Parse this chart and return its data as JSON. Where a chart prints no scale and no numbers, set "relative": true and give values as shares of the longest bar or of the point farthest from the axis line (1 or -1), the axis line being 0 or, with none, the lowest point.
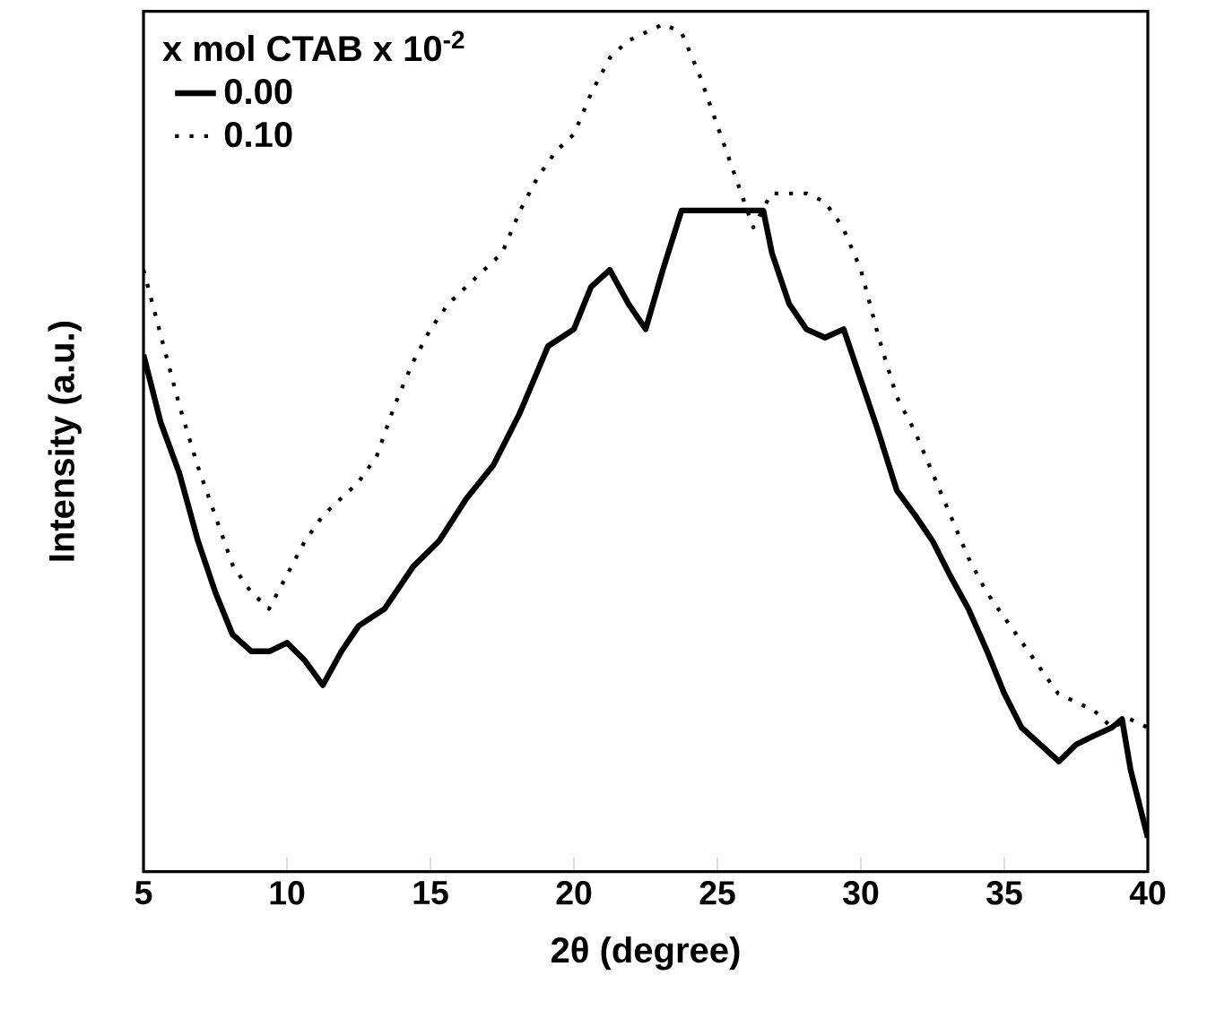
{
  "chart_data": {
    "type": "line",
    "relative": true,
    "xlabel": "2θ (degree)",
    "ylabel": "Intensity (a.u.)",
    "legend_title": "x mol CTAB x 10$^{-2}$",
    "legend": "top left",
    "xlim": [
      5,
      40
    ],
    "xticks": [
      5,
      10,
      15,
      20,
      25,
      30,
      35,
      40
    ],
    "series": [
      {
        "name": "0.00",
        "color": "#000000",
        "line_style": "solid",
        "x": [
          5,
          5.6,
          6.25,
          6.9,
          7.5,
          8.1,
          8.75,
          9.4,
          10,
          10.6,
          11.25,
          11.9,
          12.5,
          13.4,
          14.4,
          15.3,
          16.25,
          17.2,
          18.1,
          19.1,
          20,
          20.6,
          21.25,
          21.9,
          22.5,
          23.1,
          23.75,
          24.4,
          25.6,
          26.6,
          26.9,
          27.5,
          28.1,
          28.75,
          29.4,
          30,
          30.6,
          31.25,
          31.9,
          32.5,
          33.1,
          33.75,
          34.4,
          35,
          35.6,
          36.25,
          36.9,
          37.5,
          38.1,
          38.75,
          39.1,
          39.4,
          40
        ],
        "values": [
          0.61,
          0.53,
          0.47,
          0.39,
          0.33,
          0.28,
          0.26,
          0.26,
          0.27,
          0.25,
          0.22,
          0.26,
          0.29,
          0.31,
          0.36,
          0.39,
          0.44,
          0.48,
          0.54,
          0.62,
          0.64,
          0.69,
          0.71,
          0.67,
          0.64,
          0.71,
          0.78,
          0.78,
          0.78,
          0.78,
          0.73,
          0.67,
          0.64,
          0.63,
          0.64,
          0.58,
          0.52,
          0.45,
          0.42,
          0.39,
          0.35,
          0.31,
          0.26,
          0.21,
          0.17,
          0.15,
          0.13,
          0.15,
          0.16,
          0.17,
          0.18,
          0.12,
          0.04
        ]
      },
      {
        "name": "0.10",
        "color": "#000000",
        "line_style": "dotted",
        "x": [
          5,
          5.625,
          6.25,
          6.875,
          7.5,
          8.125,
          8.75,
          9.375,
          10,
          10.625,
          11.25,
          11.875,
          12.5,
          13.125,
          13.75,
          14.375,
          15,
          15.625,
          16.25,
          16.875,
          17.5,
          18.125,
          18.75,
          19.375,
          20,
          20.625,
          21.25,
          21.875,
          22.5,
          23.125,
          23.75,
          24.375,
          25,
          25.625,
          26.25,
          26.875,
          27.5,
          28.125,
          28.75,
          29.375,
          30,
          30.625,
          31.25,
          31.875,
          32.5,
          33.125,
          33.75,
          34.375,
          35,
          35.625,
          36.25,
          36.875,
          37.5,
          38.125,
          38.75,
          39.375,
          40
        ],
        "values": [
          0.71,
          0.63,
          0.55,
          0.48,
          0.42,
          0.36,
          0.33,
          0.31,
          0.35,
          0.39,
          0.42,
          0.44,
          0.46,
          0.49,
          0.55,
          0.6,
          0.64,
          0.67,
          0.69,
          0.71,
          0.73,
          0.78,
          0.82,
          0.85,
          0.87,
          0.92,
          0.96,
          0.98,
          0.99,
          1.0,
          0.99,
          0.94,
          0.88,
          0.82,
          0.76,
          0.8,
          0.8,
          0.8,
          0.79,
          0.76,
          0.71,
          0.63,
          0.56,
          0.52,
          0.47,
          0.42,
          0.37,
          0.33,
          0.3,
          0.27,
          0.24,
          0.21,
          0.2,
          0.19,
          0.17,
          0.18,
          0.17
        ]
      }
    ]
  }
}
